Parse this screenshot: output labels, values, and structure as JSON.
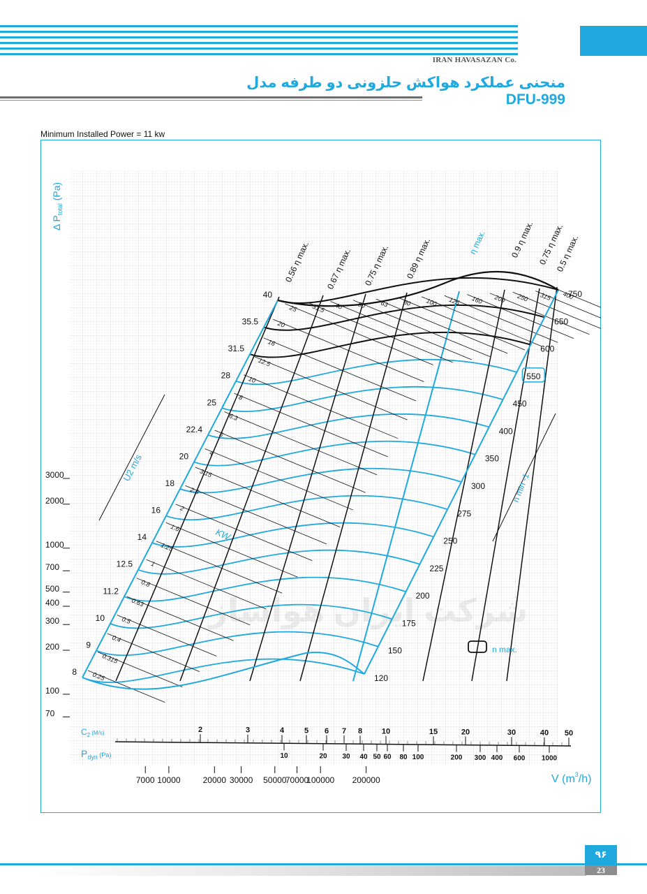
{
  "header": {
    "company": "IRAN HAVASAZAN Co.",
    "title": "منحنی عملکرد هواکش حلزونی دو طرفه مدل DFU-999",
    "min_power": "Minimum Installed Power = 11 kw"
  },
  "footer": {
    "page_fa": "۹۶",
    "page_en": "23"
  },
  "colors": {
    "accent": "#1fa9df",
    "black_curves": "#111111",
    "grid": "#d8d8d8"
  },
  "chart_data": {
    "type": "line",
    "title": "منحنی عملکرد هواکش حلزونی دو طرفه مدل DFU-999",
    "ylabel": "Δ P_total (Pa)",
    "ylabel_main": "Δ P",
    "ylabel_sub": "total",
    "ylabel_unit": "(Pa)",
    "xlabel": "V (m³/h)",
    "xlabel_main": "V (m",
    "xlabel_sup": "3",
    "xlabel_end": "/h)",
    "y_scale": "log",
    "x_scale": "log",
    "grid": true,
    "y_ticks": [
      3000,
      2000,
      1000,
      700,
      500,
      400,
      300,
      200,
      100,
      70
    ],
    "x_ticks": [
      7000,
      10000,
      20000,
      30000,
      50000,
      70000,
      100000,
      200000
    ],
    "c2_label": "C",
    "c2_sub": "2",
    "c2_unit": "(M/s)",
    "c2_ticks": [
      "2",
      "3",
      "4",
      "5",
      "6",
      "7",
      "8",
      "10",
      "15",
      "20",
      "30",
      "40",
      "50"
    ],
    "pdyn_label": "P",
    "pdyn_sub": "dyn",
    "pdyn_unit": "(Pa)",
    "pdyn_ticks": [
      "10",
      "20",
      "30",
      "40",
      "50",
      "60",
      "80",
      "100",
      "200",
      "300",
      "400",
      "600",
      "1000"
    ],
    "rpm_label": "n  min  -1",
    "rpm_curves": [
      "120",
      "150",
      "175",
      "200",
      "225",
      "250",
      "275",
      "300",
      "350",
      "400",
      "450",
      "550",
      "600",
      "650",
      "750"
    ],
    "n_max_value": "550",
    "n_max_legend": "n max.",
    "u2_label": "U2 m/s",
    "u2_values": [
      "8",
      "9",
      "10",
      "11.2",
      "12.5",
      "14",
      "16",
      "18",
      "20",
      "22.4",
      "25",
      "28",
      "31.5",
      "35.5",
      "40"
    ],
    "kw_label": "KW",
    "kw_values": [
      "0.25",
      "0.315",
      "0.4",
      "0.5",
      "0.63",
      "0.8",
      "1",
      "1.25",
      "1.6",
      "2",
      "2.5",
      "3.15",
      "4",
      "5",
      "6.3",
      "8",
      "10",
      "12.5",
      "16",
      "20",
      "25",
      "31.5",
      "40",
      "50",
      "63",
      "80",
      "100",
      "125",
      "160",
      "200",
      "250",
      "315",
      "400"
    ],
    "efficiency_lines": [
      "0.56 η max.",
      "0.67 η max.",
      "0.75 η max.",
      "0.89 η max.",
      "η  max.",
      "0.9 η max.",
      "0.75 η max.",
      "0.5 η max."
    ],
    "watermark": "شرکت ایران هواساز"
  }
}
